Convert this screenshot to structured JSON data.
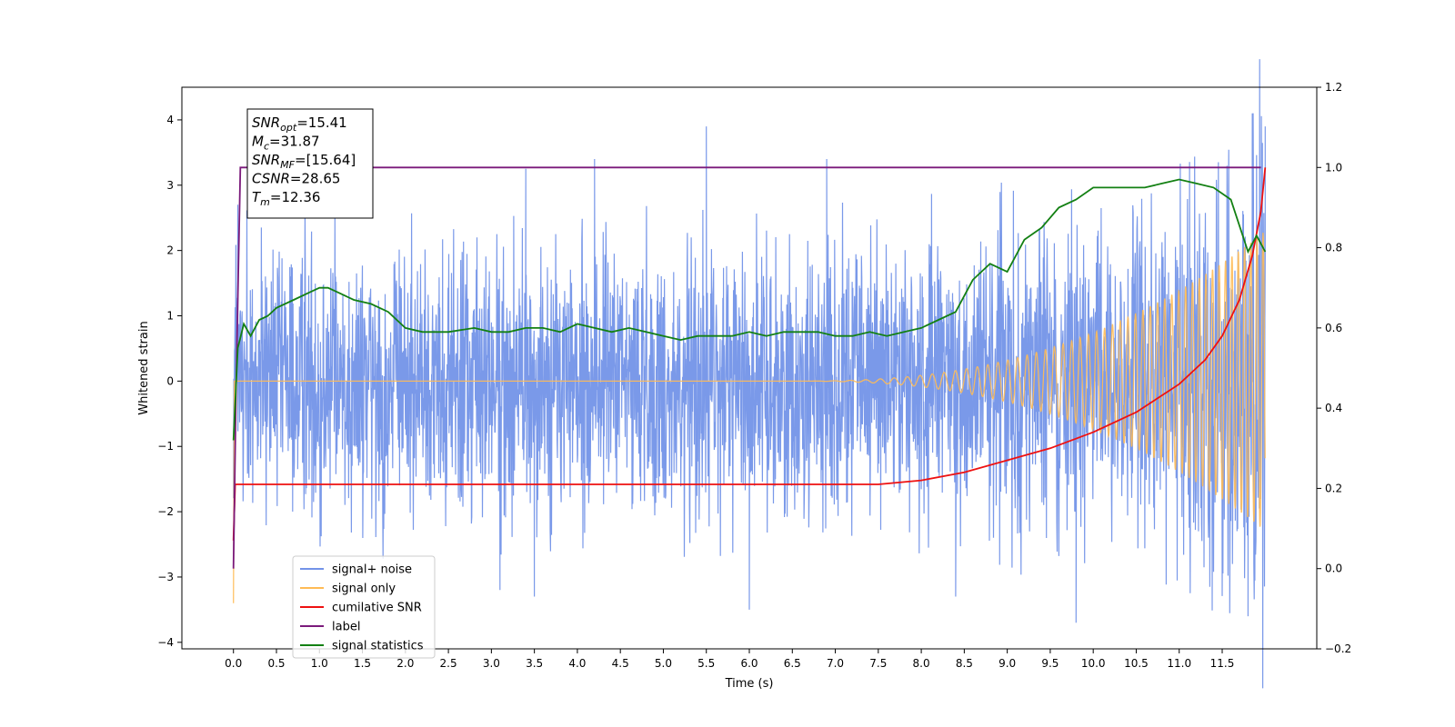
{
  "chart_data": {
    "type": "line",
    "title": "",
    "xlabel": "Time (s)",
    "ylabel": "Whitened strain",
    "ylabel_right": "",
    "xlim": [
      -0.6,
      12.6
    ],
    "ylim": [
      -4.1,
      4.5
    ],
    "ylim_right": [
      -0.2,
      1.2
    ],
    "x_ticks": [
      "0.0",
      "0.5",
      "1.0",
      "1.5",
      "2.0",
      "2.5",
      "3.0",
      "3.5",
      "4.0",
      "4.5",
      "5.0",
      "5.5",
      "6.0",
      "6.5",
      "7.0",
      "7.5",
      "8.0",
      "8.5",
      "9.0",
      "9.5",
      "10.0",
      "10.5",
      "11.0",
      "11.5"
    ],
    "y_ticks": [
      "4",
      "3",
      "2",
      "1",
      "0",
      "−1",
      "−2",
      "−3",
      "−4"
    ],
    "y_ticks_right": [
      "1.2",
      "1.0",
      "0.8",
      "0.6",
      "0.4",
      "0.2",
      "0.0",
      "−0.2"
    ],
    "grid": false,
    "legend_position": "lower-left",
    "annotations": [
      {
        "base": "SNR",
        "sub": "opt",
        "value": "=15.41"
      },
      {
        "base": "M",
        "sub": "c",
        "value": "=31.87"
      },
      {
        "base": "SNR",
        "sub": "MF",
        "value": "=[15.64]"
      },
      {
        "base": "CSNR",
        "sub": "",
        "value": "=28.65"
      },
      {
        "base": "T",
        "sub": "m",
        "value": "=12.36"
      }
    ],
    "series": [
      {
        "name": "signal+ noise",
        "color": "#7393e8",
        "axis": "left",
        "kind": "noise",
        "envelope_x": [
          0,
          6,
          8,
          10,
          11,
          11.5,
          12
        ],
        "envelope_y": [
          1.3,
          1.3,
          1.35,
          1.45,
          1.6,
          2.0,
          2.7
        ],
        "peaks_up": [
          [
            0.05,
            2.7
          ],
          [
            3.4,
            3.25
          ],
          [
            4.2,
            3.4
          ],
          [
            5.5,
            3.9
          ],
          [
            6.9,
            3.4
          ],
          [
            11.85,
            4.1
          ],
          [
            12.0,
            3.9
          ]
        ],
        "peaks_down": [
          [
            6.0,
            -3.5
          ],
          [
            9.8,
            -3.7
          ],
          [
            11.8,
            -3.6
          ],
          [
            3.1,
            -3.2
          ],
          [
            3.5,
            -3.3
          ],
          [
            8.4,
            -3.3
          ]
        ]
      },
      {
        "name": "signal only",
        "color": "#ffbb55",
        "axis": "left",
        "kind": "chirp",
        "x_start": 6.5,
        "x_end": 12.0,
        "amp_start": 0.0,
        "amp_end": 2.3,
        "spike_at_start": -3.4
      },
      {
        "name": "cumilative SNR",
        "color": "#ee1111",
        "axis": "right",
        "x": [
          0.0,
          0.02,
          6.0,
          7.5,
          8.0,
          8.5,
          9.0,
          9.5,
          10.0,
          10.5,
          11.0,
          11.3,
          11.5,
          11.7,
          11.85,
          11.95,
          12.0
        ],
        "y": [
          0.07,
          0.21,
          0.21,
          0.21,
          0.22,
          0.24,
          0.27,
          0.3,
          0.34,
          0.39,
          0.46,
          0.52,
          0.58,
          0.67,
          0.78,
          0.89,
          1.0
        ]
      },
      {
        "name": "label",
        "color": "#7b1a7b",
        "axis": "right",
        "x": [
          0.0,
          0.03,
          0.08,
          11.95
        ],
        "y": [
          0.0,
          0.45,
          1.0,
          1.0
        ]
      },
      {
        "name": "signal statistics",
        "color": "#138013",
        "axis": "right",
        "x": [
          0.0,
          0.05,
          0.12,
          0.2,
          0.3,
          0.4,
          0.5,
          0.7,
          0.9,
          1.0,
          1.1,
          1.2,
          1.4,
          1.6,
          1.8,
          2.0,
          2.2,
          2.5,
          2.8,
          3.0,
          3.2,
          3.4,
          3.6,
          3.8,
          4.0,
          4.2,
          4.4,
          4.6,
          4.8,
          5.0,
          5.2,
          5.4,
          5.6,
          5.8,
          6.0,
          6.2,
          6.4,
          6.6,
          6.8,
          7.0,
          7.2,
          7.4,
          7.6,
          7.8,
          8.0,
          8.2,
          8.4,
          8.6,
          8.8,
          9.0,
          9.2,
          9.4,
          9.6,
          9.8,
          10.0,
          10.2,
          10.4,
          10.6,
          10.8,
          11.0,
          11.2,
          11.4,
          11.6,
          11.8,
          11.9,
          12.0
        ],
        "y": [
          0.32,
          0.55,
          0.61,
          0.58,
          0.62,
          0.63,
          0.65,
          0.67,
          0.69,
          0.7,
          0.7,
          0.69,
          0.67,
          0.66,
          0.64,
          0.6,
          0.59,
          0.59,
          0.6,
          0.59,
          0.59,
          0.6,
          0.6,
          0.59,
          0.61,
          0.6,
          0.59,
          0.6,
          0.59,
          0.58,
          0.57,
          0.58,
          0.58,
          0.58,
          0.59,
          0.58,
          0.59,
          0.59,
          0.59,
          0.58,
          0.58,
          0.59,
          0.58,
          0.59,
          0.6,
          0.62,
          0.64,
          0.72,
          0.76,
          0.74,
          0.82,
          0.85,
          0.9,
          0.92,
          0.95,
          0.95,
          0.95,
          0.95,
          0.96,
          0.97,
          0.96,
          0.95,
          0.92,
          0.79,
          0.83,
          0.79
        ]
      }
    ]
  }
}
